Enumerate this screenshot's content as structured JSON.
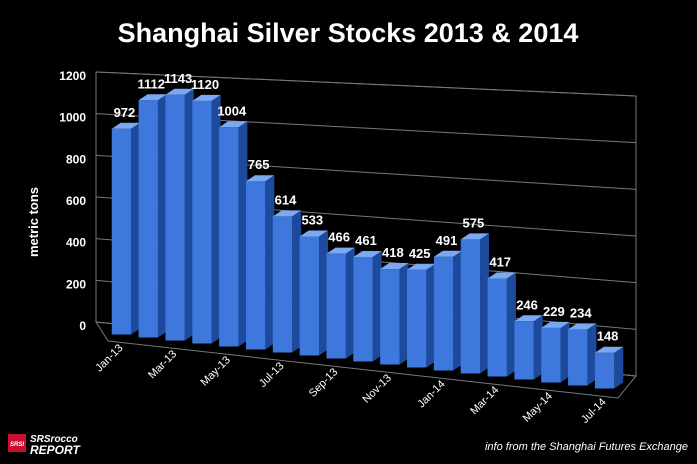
{
  "chart_data": {
    "type": "bar",
    "title": "Shanghai Silver Stocks 2013 & 2014",
    "ylabel": "metric tons",
    "xlabel": "",
    "ylim": [
      0,
      1200
    ],
    "yticks": [
      "0",
      "200",
      "400",
      "600",
      "800",
      "1000",
      "1200"
    ],
    "grid": true,
    "categories": [
      "Jan-13",
      "Feb-13",
      "Mar-13",
      "Apr-13",
      "May-13",
      "Jun-13",
      "Jul-13",
      "Aug-13",
      "Sep-13",
      "Oct-13",
      "Nov-13",
      "Dec-13",
      "Jan-14",
      "Feb-14",
      "Mar-14",
      "Apr-14",
      "May-14",
      "Jun-14",
      "Jul-14"
    ],
    "shown_category_labels": [
      "Jan-13",
      "Mar-13",
      "May-13",
      "Jul-13",
      "Sep-13",
      "Nov-13",
      "Jan-14",
      "Mar-14",
      "May-14",
      "Jul-14"
    ],
    "values": [
      972,
      1112,
      1143,
      1120,
      1004,
      765,
      614,
      533,
      466,
      461,
      418,
      425,
      491,
      575,
      417,
      246,
      229,
      234,
      148
    ],
    "data_labels": [
      "972",
      "1112",
      "1143",
      "1120",
      "1004",
      "765",
      "614",
      "533",
      "466",
      "461",
      "418",
      "425",
      "491",
      "575",
      "417",
      "246",
      "229",
      "234",
      "148"
    ],
    "colors": {
      "bar": "#3e78dc",
      "bar_dark": "#1d4a9c",
      "bar_top": "#7aa8f2",
      "grid": "#777777"
    }
  },
  "logo": {
    "text_top": "SRSrocco",
    "text_bottom": "REPORT",
    "badge": "SRSI"
  },
  "source_note": "info from the Shanghai Futures Exchange"
}
